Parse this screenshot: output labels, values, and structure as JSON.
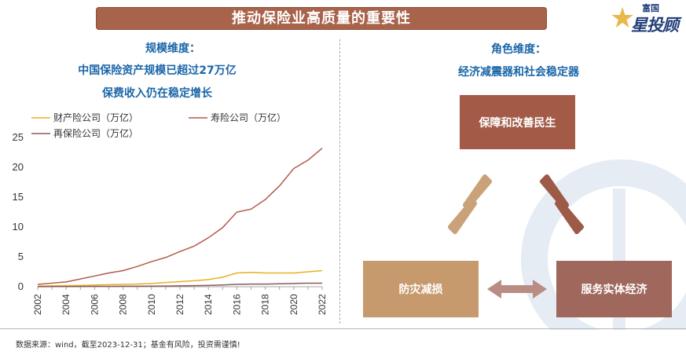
{
  "title": "推动保险业高质量的重要性",
  "logo": {
    "small": "富国",
    "big": "星投顾"
  },
  "left": {
    "heading": "规模维度：",
    "line1": "中国保险资产规模已超过27万亿",
    "line2": "保费收入仍在稳定增长"
  },
  "right": {
    "heading": "角色维度：",
    "line1": "经济减震器和社会稳定器",
    "box_top": "保障和改善民生",
    "box_left": "防灾减损",
    "box_right": "服务实体经济"
  },
  "footer": "数据来源：wind，截至2023-12-31；基金有风险，投资需谨慎!",
  "colors": {
    "banner": "#a8634b",
    "heading": "#1a66a8",
    "box_top": "#a35b48",
    "box_left": "#c79a6e",
    "box_right": "#a0675c",
    "arrow_left": "#c9a27a",
    "arrow_right": "#9c5a47",
    "arrow_bottom": "#b98d84"
  },
  "chart_data": {
    "type": "line",
    "x": [
      2002,
      2003,
      2004,
      2005,
      2006,
      2007,
      2008,
      2009,
      2010,
      2011,
      2012,
      2013,
      2014,
      2015,
      2016,
      2017,
      2018,
      2019,
      2020,
      2021,
      2022
    ],
    "xticks": [
      "2002",
      "2004",
      "2006",
      "2008",
      "2010",
      "2012",
      "2014",
      "2016",
      "2018",
      "2020",
      "2022"
    ],
    "yticks": [
      "0",
      "5",
      "10",
      "15",
      "20",
      "25"
    ],
    "ylim": [
      0,
      25
    ],
    "series": [
      {
        "name": "财产险公司（万亿）",
        "color": "#e8b020",
        "values": [
          0.1,
          0.15,
          0.18,
          0.22,
          0.28,
          0.35,
          0.4,
          0.45,
          0.55,
          0.7,
          0.85,
          1.0,
          1.2,
          1.6,
          2.3,
          2.4,
          2.3,
          2.3,
          2.3,
          2.5,
          2.7
        ]
      },
      {
        "name": "寿险公司（万亿）",
        "color": "#b35a4a",
        "values": [
          0.4,
          0.6,
          0.8,
          1.3,
          1.8,
          2.3,
          2.7,
          3.4,
          4.2,
          4.9,
          5.9,
          6.8,
          8.2,
          9.9,
          12.5,
          13.0,
          14.6,
          16.9,
          19.8,
          21.2,
          23.2
        ]
      },
      {
        "name": "再保险公司（万亿）",
        "color": "#8a5a5a",
        "values": [
          0.02,
          0.03,
          0.04,
          0.05,
          0.06,
          0.07,
          0.08,
          0.08,
          0.1,
          0.12,
          0.15,
          0.18,
          0.22,
          0.3,
          0.4,
          0.45,
          0.45,
          0.5,
          0.55,
          0.6,
          0.6
        ]
      }
    ]
  }
}
